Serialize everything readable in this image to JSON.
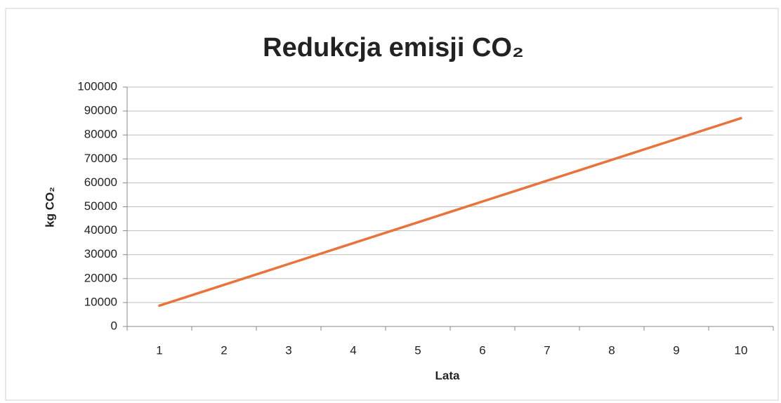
{
  "chart_data": {
    "type": "line",
    "title": "Redukcja emisji CO₂",
    "x_label": "Lata",
    "y_label": "kg CO₂",
    "categories": [
      "1",
      "2",
      "3",
      "4",
      "5",
      "6",
      "7",
      "8",
      "9",
      "10"
    ],
    "series": [
      {
        "name": "Redukcja emisji CO₂",
        "color": "#e8743b",
        "values": [
          8700,
          17400,
          26100,
          34800,
          43500,
          52200,
          60900,
          69600,
          78300,
          87000
        ]
      }
    ],
    "ylim": [
      0,
      100000
    ],
    "yticks": [
      0,
      10000,
      20000,
      30000,
      40000,
      50000,
      60000,
      70000,
      80000,
      90000,
      100000
    ],
    "grid": true,
    "legend": false
  }
}
